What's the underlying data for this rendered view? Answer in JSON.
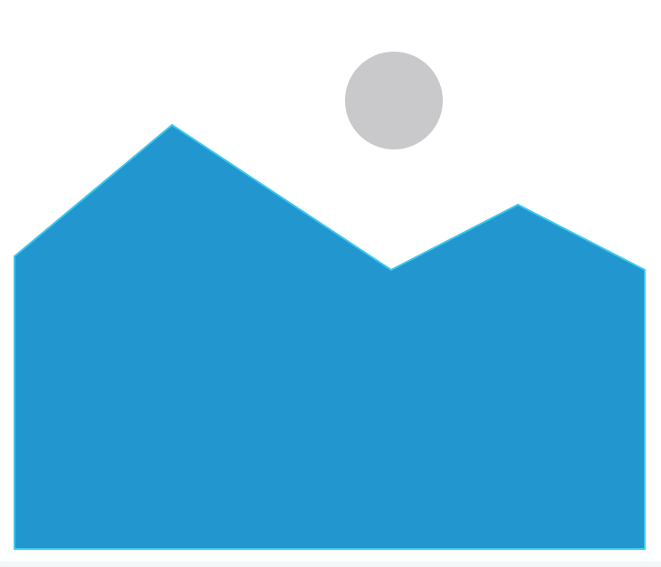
{
  "image_placeholder": {
    "icon": "image-placeholder-icon",
    "colors": {
      "background": "#ffffff",
      "mountains": "#2196cf",
      "mountain_edge": "#3cc8ee",
      "sun": "#c9c9cc"
    }
  }
}
